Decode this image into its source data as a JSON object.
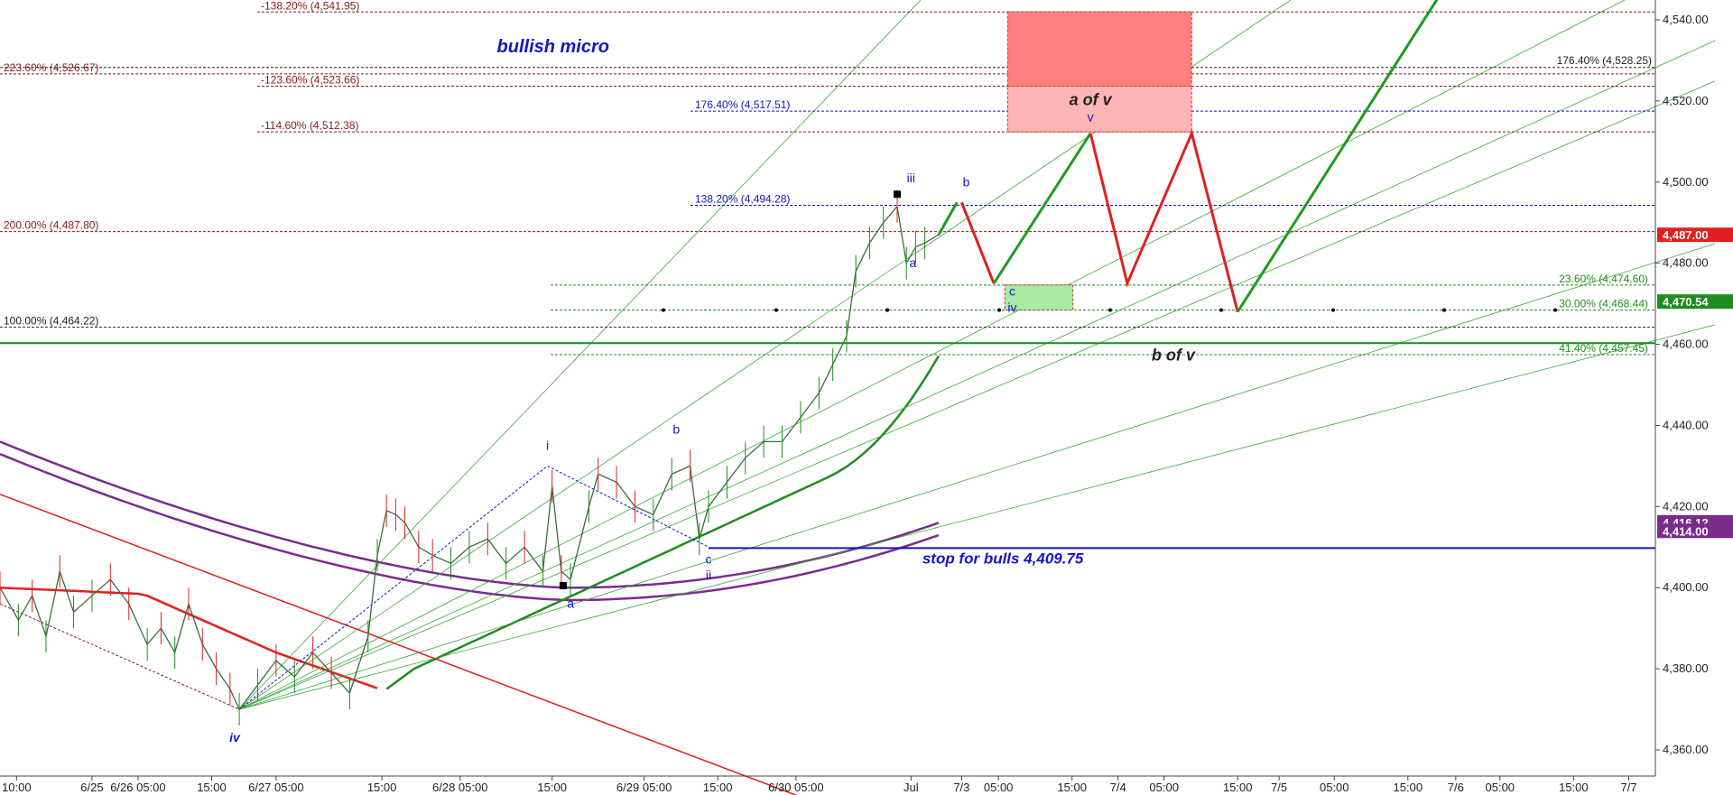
{
  "chart_data": {
    "type": "line",
    "ylim": [
      4350,
      4545
    ],
    "y_ticks": [
      4360,
      4380,
      4400,
      4420,
      4440,
      4460,
      4480,
      4500,
      4520,
      4540
    ],
    "y_tick_labels": [
      "4,360.00",
      "4,380.00",
      "4,400.00",
      "4,420.00",
      "4,440.00",
      "4,460.00",
      "4,480.00",
      "4,500.00",
      "4,520.00",
      "4,540.00"
    ],
    "x_ticks": [
      {
        "label": "10:00",
        "t": 0.18
      },
      {
        "label": "6/25",
        "t": 1.0
      },
      {
        "label": "6/26 05:00",
        "t": 1.5
      },
      {
        "label": "15:00",
        "t": 2.3
      },
      {
        "label": "6/27 05:00",
        "t": 3.0
      },
      {
        "label": "15:00",
        "t": 4.15
      },
      {
        "label": "6/28 05:00",
        "t": 5.0
      },
      {
        "label": "15:00",
        "t": 6.0
      },
      {
        "label": "6/29 05:00",
        "t": 7.0
      },
      {
        "label": "15:00",
        "t": 7.8
      },
      {
        "label": "6/30 05:00",
        "t": 8.65
      },
      {
        "label": "Jul",
        "t": 9.9
      },
      {
        "label": "7/3",
        "t": 10.45
      },
      {
        "label": "05:00",
        "t": 10.85
      },
      {
        "label": "15:00",
        "t": 11.65
      },
      {
        "label": "7/4",
        "t": 12.15
      },
      {
        "label": "05:00",
        "t": 12.65
      },
      {
        "label": "15:00",
        "t": 13.45
      },
      {
        "label": "7/5",
        "t": 13.9
      },
      {
        "label": "05:00",
        "t": 14.5
      },
      {
        "label": "15:00",
        "t": 15.3
      },
      {
        "label": "7/6",
        "t": 15.82
      },
      {
        "label": "05:00",
        "t": 16.3
      },
      {
        "label": "15:00",
        "t": 17.1
      },
      {
        "label": "7/7",
        "t": 17.7
      }
    ],
    "price": [
      [
        0.0,
        4400
      ],
      [
        0.2,
        4392
      ],
      [
        0.35,
        4398
      ],
      [
        0.5,
        4388
      ],
      [
        0.65,
        4404
      ],
      [
        0.8,
        4394
      ],
      [
        1.0,
        4398
      ],
      [
        1.2,
        4402
      ],
      [
        1.4,
        4396
      ],
      [
        1.6,
        4386
      ],
      [
        1.75,
        4390
      ],
      [
        1.9,
        4384
      ],
      [
        2.05,
        4396
      ],
      [
        2.2,
        4386
      ],
      [
        2.35,
        4380
      ],
      [
        2.5,
        4375
      ],
      [
        2.6,
        4370
      ],
      [
        2.8,
        4376
      ],
      [
        3.0,
        4382
      ],
      [
        3.2,
        4378
      ],
      [
        3.4,
        4384
      ],
      [
        3.6,
        4379
      ],
      [
        3.8,
        4374
      ],
      [
        4.0,
        4388
      ],
      [
        4.1,
        4408
      ],
      [
        4.2,
        4419
      ],
      [
        4.3,
        4418
      ],
      [
        4.4,
        4416
      ],
      [
        4.55,
        4410
      ],
      [
        4.7,
        4408
      ],
      [
        4.9,
        4406
      ],
      [
        5.1,
        4410
      ],
      [
        5.3,
        4412
      ],
      [
        5.5,
        4406
      ],
      [
        5.7,
        4410
      ],
      [
        5.9,
        4404
      ],
      [
        6.0,
        4425
      ],
      [
        6.1,
        4404
      ],
      [
        6.2,
        4402
      ],
      [
        6.4,
        4420
      ],
      [
        6.5,
        4428
      ],
      [
        6.7,
        4426
      ],
      [
        6.9,
        4420
      ],
      [
        7.1,
        4418
      ],
      [
        7.3,
        4428
      ],
      [
        7.5,
        4430
      ],
      [
        7.6,
        4412
      ],
      [
        7.7,
        4420
      ],
      [
        7.9,
        4426
      ],
      [
        8.1,
        4432
      ],
      [
        8.3,
        4436
      ],
      [
        8.5,
        4436
      ],
      [
        8.7,
        4442
      ],
      [
        8.9,
        4448
      ],
      [
        9.05,
        4455
      ],
      [
        9.2,
        4462
      ],
      [
        9.3,
        4478
      ],
      [
        9.45,
        4485
      ],
      [
        9.6,
        4490
      ],
      [
        9.75,
        4494
      ],
      [
        9.85,
        4480
      ],
      [
        9.95,
        4484
      ],
      [
        10.05,
        4485
      ],
      [
        10.2,
        4487
      ]
    ],
    "fib_levels_left": [
      {
        "label": "-138.20% (4,541.95)",
        "value": 4541.95,
        "color": "#8b1a1a"
      },
      {
        "label": "223.60% (4,526.67)",
        "value": 4526.67,
        "color": "#8b1a1a"
      },
      {
        "label": "-123.60% (4,523.66)",
        "value": 4523.66,
        "color": "#8b1a1a"
      },
      {
        "label": "-114.60% (4,512.38)",
        "value": 4512.38,
        "color": "#8b1a1a"
      },
      {
        "label": "200.00% (4,487.80)",
        "value": 4487.8,
        "color": "#8b1a1a"
      },
      {
        "label": "100.00% (4,464.22)",
        "value": 4464.22,
        "color": "#222222"
      }
    ],
    "fib_levels_blue": [
      {
        "label": "176.40% (4,517.51)",
        "value": 4517.51
      },
      {
        "label": "138.20% (4,494.28)",
        "value": 4494.28
      }
    ],
    "fib_levels_green": [
      {
        "label": "23.60% (4,474.60)",
        "value": 4474.6
      },
      {
        "label": "30.00% (4,468.44)",
        "value": 4468.44
      },
      {
        "label": "41.40% (4,457.45)",
        "value": 4457.45
      }
    ],
    "right_level": {
      "label": "176.40% (4,528.25)",
      "value": 4528.25
    },
    "projection_green": [
      [
        10.2,
        4487
      ],
      [
        10.4,
        4495
      ]
    ],
    "projection_red": [
      [
        10.45,
        4495
      ],
      [
        10.8,
        4475
      ]
    ],
    "projection_green2": [
      [
        10.8,
        4475
      ],
      [
        11.85,
        4512
      ]
    ],
    "projection_red2": [
      [
        11.85,
        4512
      ],
      [
        12.25,
        4475
      ],
      [
        12.95,
        4512
      ],
      [
        13.45,
        4468
      ]
    ],
    "projection_green3": [
      [
        13.45,
        4468
      ],
      [
        15.7,
        4548
      ]
    ],
    "price_tags": [
      {
        "label": "4,487.00",
        "value": 4487.0,
        "color": "#e02020"
      },
      {
        "label": "4,470.54",
        "value": 4470.54,
        "color": "#1e8c1e"
      },
      {
        "label": "4,416.12",
        "value": 4416.12,
        "color": "#7a2c8c"
      },
      {
        "label": "4,414.00",
        "value": 4414.0,
        "color": "#7a2c8c"
      }
    ],
    "wave_labels": [
      {
        "text": "iv",
        "t": 2.55,
        "v": 4362,
        "big": true
      },
      {
        "text": "i",
        "t": 5.95,
        "v": 4434
      },
      {
        "text": "a",
        "t": 6.2,
        "v": 4395
      },
      {
        "text": "b",
        "t": 7.35,
        "v": 4438
      },
      {
        "text": "c",
        "t": 7.7,
        "v": 4406
      },
      {
        "text": "ii",
        "t": 7.7,
        "v": 4402
      },
      {
        "text": "iii",
        "t": 9.9,
        "v": 4500
      },
      {
        "text": "a",
        "t": 9.92,
        "v": 4479
      },
      {
        "text": "b",
        "t": 10.5,
        "v": 4499
      },
      {
        "text": "c",
        "t": 11.0,
        "v": 4472
      },
      {
        "text": "iv",
        "t": 11.0,
        "v": 4468
      },
      {
        "text": "v",
        "t": 11.85,
        "v": 4515
      }
    ],
    "annotations": [
      {
        "text": "bullish micro",
        "t": 5.4,
        "v": 4532
      },
      {
        "text": "a of v",
        "t": 11.85,
        "v": 4519
      },
      {
        "text": "b of v",
        "t": 12.75,
        "v": 4456
      },
      {
        "text": "stop for bulls 4,409.75",
        "t": 11.2,
        "v": 4406
      }
    ],
    "stop_level": 4409.75,
    "grid": false,
    "legend": "none"
  }
}
